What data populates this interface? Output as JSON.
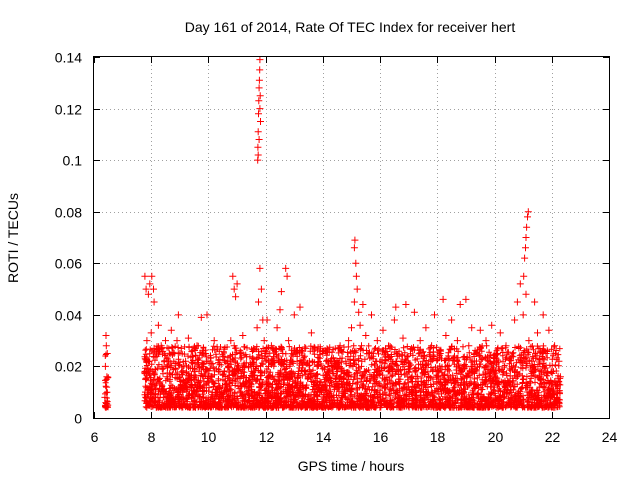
{
  "chart_data": {
    "type": "scatter",
    "title": "Day 161 of 2014, Rate Of TEC Index for receiver hert",
    "xlabel": "GPS time / hours",
    "ylabel": "ROTI / TECUs",
    "xlim": [
      6,
      24
    ],
    "ylim": [
      0,
      0.14
    ],
    "x_ticks": [
      6,
      8,
      10,
      12,
      14,
      16,
      18,
      20,
      22,
      24
    ],
    "y_ticks": [
      0,
      0.02,
      0.04,
      0.06,
      0.08,
      0.1,
      0.12,
      0.14
    ],
    "x_tick_labels": [
      "6",
      "8",
      "10",
      "12",
      "14",
      "16",
      "18",
      "20",
      "22",
      "24"
    ],
    "y_tick_labels": [
      "0",
      "0.02",
      "0.04",
      "0.06",
      "0.08",
      "0.1",
      "0.12",
      "0.14"
    ],
    "grid": true,
    "marker": "+",
    "color": "#ff0000",
    "series": [
      {
        "name": "ROTI",
        "points": [
          [
            6.38,
            0.008
          ],
          [
            6.4,
            0.02
          ],
          [
            6.42,
            0.032
          ],
          [
            6.44,
            0.012
          ],
          [
            6.46,
            0.025
          ],
          [
            6.48,
            0.005
          ],
          [
            6.45,
            0.016
          ],
          [
            6.43,
            0.028
          ],
          [
            7.78,
            0.055
          ],
          [
            7.82,
            0.05
          ],
          [
            7.9,
            0.048
          ],
          [
            7.95,
            0.052
          ],
          [
            8.02,
            0.055
          ],
          [
            8.08,
            0.05
          ],
          [
            8.1,
            0.045
          ],
          [
            7.8,
            0.015
          ],
          [
            7.85,
            0.03
          ],
          [
            7.9,
            0.022
          ],
          [
            7.95,
            0.012
          ],
          [
            8.0,
            0.033
          ],
          [
            8.05,
            0.018
          ],
          [
            8.1,
            0.027
          ],
          [
            8.15,
            0.009
          ],
          [
            8.2,
            0.024
          ],
          [
            8.25,
            0.036
          ],
          [
            8.3,
            0.014
          ],
          [
            8.35,
            0.028
          ],
          [
            8.4,
            0.011
          ],
          [
            8.5,
            0.03
          ],
          [
            8.55,
            0.016
          ],
          [
            8.6,
            0.022
          ],
          [
            8.7,
            0.034
          ],
          [
            8.75,
            0.012
          ],
          [
            8.8,
            0.025
          ],
          [
            8.85,
            0.019
          ],
          [
            8.9,
            0.03
          ],
          [
            8.95,
            0.04
          ],
          [
            9.0,
            0.015
          ],
          [
            9.05,
            0.027
          ],
          [
            9.1,
            0.01
          ],
          [
            9.2,
            0.022
          ],
          [
            9.3,
            0.031
          ],
          [
            9.4,
            0.013
          ],
          [
            9.45,
            0.024
          ],
          [
            9.5,
            0.018
          ],
          [
            9.6,
            0.028
          ],
          [
            9.7,
            0.012
          ],
          [
            9.75,
            0.039
          ],
          [
            9.8,
            0.02
          ],
          [
            9.9,
            0.025
          ],
          [
            9.95,
            0.04
          ],
          [
            10.0,
            0.014
          ],
          [
            10.1,
            0.021
          ],
          [
            10.2,
            0.03
          ],
          [
            10.3,
            0.011
          ],
          [
            10.4,
            0.018
          ],
          [
            10.5,
            0.024
          ],
          [
            10.6,
            0.013
          ],
          [
            10.7,
            0.02
          ],
          [
            10.78,
            0.03
          ],
          [
            10.85,
            0.055
          ],
          [
            10.9,
            0.05
          ],
          [
            10.95,
            0.047
          ],
          [
            11.0,
            0.052
          ],
          [
            10.9,
            0.028
          ],
          [
            11.0,
            0.019
          ],
          [
            11.1,
            0.025
          ],
          [
            11.2,
            0.032
          ],
          [
            11.3,
            0.014
          ],
          [
            11.4,
            0.02
          ],
          [
            11.5,
            0.011
          ],
          [
            11.72,
            0.1
          ],
          [
            11.73,
            0.105
          ],
          [
            11.74,
            0.111
          ],
          [
            11.75,
            0.118
          ],
          [
            11.76,
            0.123
          ],
          [
            11.77,
            0.128
          ],
          [
            11.78,
            0.131
          ],
          [
            11.79,
            0.135
          ],
          [
            11.8,
            0.139
          ],
          [
            11.81,
            0.125
          ],
          [
            11.82,
            0.115
          ],
          [
            11.74,
            0.102
          ],
          [
            11.77,
            0.108
          ],
          [
            11.8,
            0.12
          ],
          [
            11.7,
            0.035
          ],
          [
            11.75,
            0.045
          ],
          [
            11.8,
            0.058
          ],
          [
            11.85,
            0.05
          ],
          [
            11.9,
            0.038
          ],
          [
            11.95,
            0.03
          ],
          [
            12.0,
            0.025
          ],
          [
            11.7,
            0.015
          ],
          [
            12.05,
            0.038
          ],
          [
            12.1,
            0.02
          ],
          [
            12.2,
            0.028
          ],
          [
            12.3,
            0.015
          ],
          [
            12.4,
            0.035
          ],
          [
            12.5,
            0.042
          ],
          [
            12.55,
            0.049
          ],
          [
            12.6,
            0.025
          ],
          [
            12.7,
            0.058
          ],
          [
            12.75,
            0.055
          ],
          [
            12.8,
            0.03
          ],
          [
            12.9,
            0.018
          ],
          [
            13.0,
            0.04
          ],
          [
            13.1,
            0.022
          ],
          [
            13.2,
            0.043
          ],
          [
            13.3,
            0.012
          ],
          [
            13.4,
            0.027
          ],
          [
            13.5,
            0.016
          ],
          [
            13.6,
            0.033
          ],
          [
            13.7,
            0.011
          ],
          [
            13.8,
            0.02
          ],
          [
            13.9,
            0.014
          ],
          [
            14.0,
            0.025
          ],
          [
            14.1,
            0.01
          ],
          [
            14.2,
            0.018
          ],
          [
            14.3,
            0.023
          ],
          [
            14.4,
            0.012
          ],
          [
            14.5,
            0.019
          ],
          [
            14.6,
            0.028
          ],
          [
            14.7,
            0.013
          ],
          [
            14.8,
            0.022
          ],
          [
            14.9,
            0.03
          ],
          [
            15.0,
            0.035
          ],
          [
            15.05,
            0.02
          ],
          [
            15.1,
            0.066
          ],
          [
            15.12,
            0.069
          ],
          [
            15.15,
            0.06
          ],
          [
            15.17,
            0.055
          ],
          [
            15.2,
            0.05
          ],
          [
            15.1,
            0.045
          ],
          [
            15.25,
            0.041
          ],
          [
            15.3,
            0.036
          ],
          [
            15.35,
            0.028
          ],
          [
            15.4,
            0.044
          ],
          [
            15.45,
            0.018
          ],
          [
            15.5,
            0.032
          ],
          [
            15.6,
            0.025
          ],
          [
            15.7,
            0.04
          ],
          [
            15.8,
            0.015
          ],
          [
            15.9,
            0.03
          ],
          [
            16.0,
            0.022
          ],
          [
            16.1,
            0.034
          ],
          [
            16.2,
            0.012
          ],
          [
            16.3,
            0.028
          ],
          [
            16.4,
            0.019
          ],
          [
            16.5,
            0.038
          ],
          [
            16.55,
            0.043
          ],
          [
            16.6,
            0.024
          ],
          [
            16.7,
            0.015
          ],
          [
            16.8,
            0.031
          ],
          [
            16.9,
            0.044
          ],
          [
            17.0,
            0.02
          ],
          [
            17.1,
            0.027
          ],
          [
            17.2,
            0.041
          ],
          [
            17.3,
            0.013
          ],
          [
            17.4,
            0.03
          ],
          [
            17.5,
            0.022
          ],
          [
            17.6,
            0.035
          ],
          [
            17.7,
            0.016
          ],
          [
            17.8,
            0.028
          ],
          [
            17.9,
            0.04
          ],
          [
            18.0,
            0.018
          ],
          [
            18.1,
            0.025
          ],
          [
            18.2,
            0.046
          ],
          [
            18.3,
            0.032
          ],
          [
            18.4,
            0.015
          ],
          [
            18.5,
            0.038
          ],
          [
            18.6,
            0.024
          ],
          [
            18.7,
            0.03
          ],
          [
            18.8,
            0.044
          ],
          [
            18.9,
            0.019
          ],
          [
            19.0,
            0.046
          ],
          [
            19.1,
            0.028
          ],
          [
            19.2,
            0.035
          ],
          [
            19.3,
            0.014
          ],
          [
            19.4,
            0.026
          ],
          [
            19.5,
            0.034
          ],
          [
            19.6,
            0.017
          ],
          [
            19.7,
            0.03
          ],
          [
            19.8,
            0.022
          ],
          [
            19.9,
            0.036
          ],
          [
            20.0,
            0.012
          ],
          [
            20.1,
            0.025
          ],
          [
            20.2,
            0.033
          ],
          [
            20.3,
            0.018
          ],
          [
            20.4,
            0.028
          ],
          [
            20.5,
            0.014
          ],
          [
            20.6,
            0.024
          ],
          [
            20.7,
            0.038
          ],
          [
            20.8,
            0.045
          ],
          [
            20.9,
            0.052
          ],
          [
            21.0,
            0.04
          ],
          [
            21.02,
            0.055
          ],
          [
            21.05,
            0.062
          ],
          [
            21.08,
            0.066
          ],
          [
            21.1,
            0.07
          ],
          [
            21.12,
            0.074
          ],
          [
            21.15,
            0.078
          ],
          [
            21.18,
            0.08
          ],
          [
            21.1,
            0.048
          ],
          [
            21.2,
            0.03
          ],
          [
            21.3,
            0.022
          ],
          [
            21.4,
            0.045
          ],
          [
            21.5,
            0.033
          ],
          [
            21.6,
            0.015
          ],
          [
            21.7,
            0.04
          ],
          [
            21.8,
            0.025
          ],
          [
            21.9,
            0.034
          ],
          [
            22.0,
            0.018
          ],
          [
            22.1,
            0.028
          ],
          [
            22.2,
            0.013
          ],
          [
            22.25,
            0.022
          ],
          [
            22.3,
            0.016
          ]
        ]
      }
    ]
  }
}
